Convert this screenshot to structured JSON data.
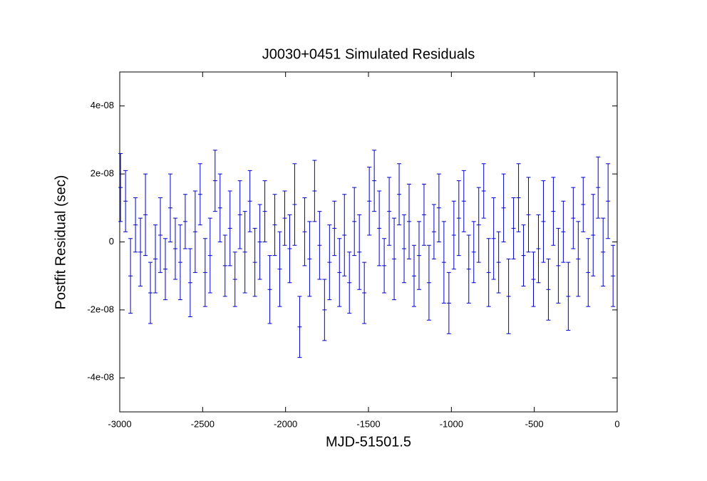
{
  "chart_data": {
    "type": "errorbar",
    "title": "J0030+0451 Simulated Residuals",
    "x_label": "MJD-51501.5",
    "y_label": "Postfit Residual (sec)",
    "color": "#0000cc",
    "xlim": [
      -3000,
      0
    ],
    "xticks": [
      -3000,
      -2500,
      -2000,
      -1500,
      -1000,
      -500,
      0
    ],
    "ylim": [
      -5e-08,
      5e-08
    ],
    "yticks": [
      {
        "value": 4e-08,
        "label": "4e-08"
      },
      {
        "value": 2e-08,
        "label": "2e-08"
      },
      0,
      {
        "value": -2e-08,
        "label": "-2e-08"
      },
      {
        "value": -4e-08,
        "label": "-4e-08"
      }
    ],
    "x": [
      -2995,
      -2965,
      -2935,
      -2905,
      -2875,
      -2845,
      -2815,
      -2785,
      -2755,
      -2725,
      -2695,
      -2665,
      -2635,
      -2605,
      -2575,
      -2545,
      -2515,
      -2485,
      -2455,
      -2425,
      -2395,
      -2365,
      -2335,
      -2305,
      -2275,
      -2245,
      -2215,
      -2185,
      -2155,
      -2125,
      -2095,
      -2065,
      -2035,
      -2005,
      -1975,
      -1945,
      -1915,
      -1885,
      -1855,
      -1825,
      -1795,
      -1765,
      -1735,
      -1705,
      -1675,
      -1645,
      -1615,
      -1585,
      -1555,
      -1525,
      -1495,
      -1465,
      -1435,
      -1405,
      -1375,
      -1345,
      -1315,
      -1285,
      -1255,
      -1225,
      -1195,
      -1165,
      -1135,
      -1105,
      -1075,
      -1045,
      -1015,
      -985,
      -955,
      -925,
      -895,
      -865,
      -835,
      -805,
      -775,
      -745,
      -715,
      -685,
      -655,
      -625,
      -595,
      -565,
      -535,
      -505,
      -475,
      -445,
      -415,
      -385,
      -355,
      -325,
      -295,
      -265,
      -235,
      -205,
      -175,
      -145,
      -115,
      -85,
      -55,
      -25
    ],
    "values": [
      1.6e-08,
      1.2e-08,
      -1e-08,
      5e-09,
      -3e-09,
      8e-09,
      -1.5e-08,
      -5e-09,
      2e-09,
      -8e-09,
      1e-08,
      -2e-09,
      -6e-09,
      6e-09,
      -1.2e-08,
      3e-09,
      1.4e-08,
      -9e-09,
      -4e-09,
      1.8e-08,
      1e-08,
      -7e-09,
      4e-09,
      -1.1e-08,
      8e-09,
      -3e-09,
      1.2e-08,
      -6e-09,
      0,
      9e-09,
      -1.4e-08,
      5e-09,
      -8e-09,
      7e-09,
      -2e-09,
      1.1e-08,
      -2.5e-08,
      3e-09,
      -5e-09,
      1.5e-08,
      -1e-09,
      -2e-08,
      -6e-09,
      4e-09,
      -9e-09,
      2e-09,
      -1.2e-08,
      6e-09,
      -3e-09,
      -1.5e-08,
      1.2e-08,
      1.8e-08,
      4e-09,
      -7e-09,
      9e-09,
      -5e-09,
      1.4e-08,
      -2e-09,
      6e-09,
      -1e-08,
      -4e-09,
      8e-09,
      -1.2e-08,
      3e-09,
      1e-08,
      -6e-09,
      -1.8e-08,
      2e-09,
      7e-09,
      1.2e-08,
      -8e-09,
      -3e-09,
      5e-09,
      1.5e-08,
      -9e-09,
      1e-09,
      -6e-09,
      1e-08,
      -1.6e-08,
      4e-09,
      1.3e-08,
      -4e-09,
      8e-09,
      -1.1e-08,
      -2e-09,
      6e-09,
      -1.4e-08,
      9e-09,
      -7e-09,
      3e-09,
      -1.6e-08,
      7e-09,
      -5e-09,
      1.1e-08,
      -9e-09,
      2e-09,
      1.6e-08,
      -3e-09,
      1.2e-08,
      -1e-08
    ],
    "errors": [
      1e-08,
      9e-09,
      1.1e-08,
      8e-09,
      1e-08,
      1.2e-08,
      9e-09,
      1e-08,
      1.1e-08,
      9e-09,
      1e-08,
      9e-09,
      1.1e-08,
      8e-09,
      1e-08,
      1.2e-08,
      9e-09,
      1e-08,
      1.1e-08,
      9e-09,
      1e-08,
      9e-09,
      1.1e-08,
      8e-09,
      1e-08,
      1.2e-08,
      9e-09,
      1e-08,
      1.1e-08,
      9e-09,
      1e-08,
      9e-09,
      1.1e-08,
      8e-09,
      1e-08,
      1.2e-08,
      9e-09,
      1e-08,
      1.1e-08,
      9e-09,
      1e-08,
      9e-09,
      1.1e-08,
      8e-09,
      1e-08,
      1.2e-08,
      9e-09,
      1e-08,
      1.1e-08,
      9e-09,
      1e-08,
      9e-09,
      1.1e-08,
      8e-09,
      1e-08,
      1.2e-08,
      9e-09,
      1e-08,
      1.1e-08,
      9e-09,
      1e-08,
      9e-09,
      1.1e-08,
      8e-09,
      1e-08,
      1.2e-08,
      9e-09,
      1e-08,
      1.1e-08,
      9e-09,
      1e-08,
      9e-09,
      1.1e-08,
      8e-09,
      1e-08,
      1.2e-08,
      9e-09,
      1e-08,
      1.1e-08,
      9e-09,
      1e-08,
      9e-09,
      1.1e-08,
      8e-09,
      1e-08,
      1.2e-08,
      9e-09,
      1e-08,
      1.1e-08,
      9e-09,
      1e-08,
      9e-09,
      1.1e-08,
      8e-09,
      1e-08,
      1.2e-08,
      9e-09,
      1e-08,
      1.1e-08,
      9e-09
    ]
  }
}
